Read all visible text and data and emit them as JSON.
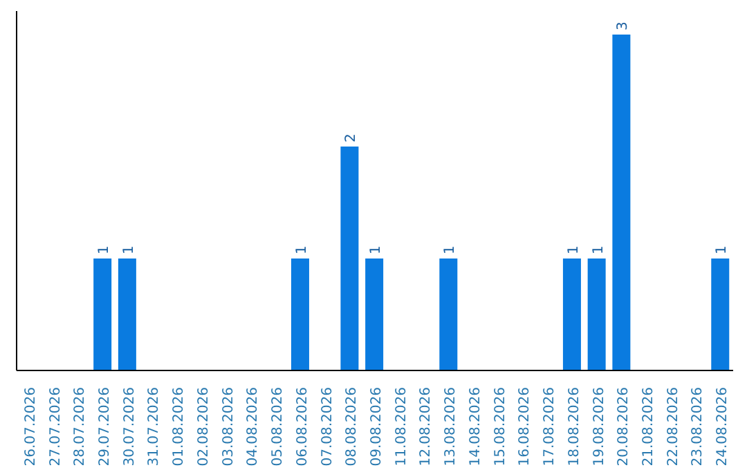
{
  "chart_data": {
    "type": "bar",
    "categories": [
      "26.07.2026",
      "27.07.2026",
      "28.07.2026",
      "29.07.2026",
      "30.07.2026",
      "31.07.2026",
      "01.08.2026",
      "02.08.2026",
      "03.08.2026",
      "04.08.2026",
      "05.08.2026",
      "06.08.2026",
      "07.08.2026",
      "08.08.2026",
      "09.08.2026",
      "11.08.2026",
      "12.08.2026",
      "13.08.2026",
      "14.08.2026",
      "15.08.2026",
      "16.08.2026",
      "17.08.2026",
      "18.08.2026",
      "19.08.2026",
      "20.08.2026",
      "21.08.2026",
      "22.08.2026",
      "23.08.2026",
      "24.08.2026"
    ],
    "values": [
      0,
      0,
      0,
      1,
      1,
      0,
      0,
      0,
      0,
      0,
      0,
      1,
      0,
      2,
      1,
      0,
      0,
      1,
      0,
      0,
      0,
      0,
      1,
      1,
      3,
      0,
      0,
      0,
      1
    ],
    "value_labels": [
      null,
      null,
      null,
      "1",
      "1",
      null,
      null,
      null,
      null,
      null,
      null,
      "1",
      null,
      "2",
      "1",
      null,
      null,
      "1",
      null,
      null,
      null,
      null,
      "1",
      "1",
      "3",
      null,
      null,
      null,
      "1"
    ],
    "color": "#0a7be0"
  }
}
